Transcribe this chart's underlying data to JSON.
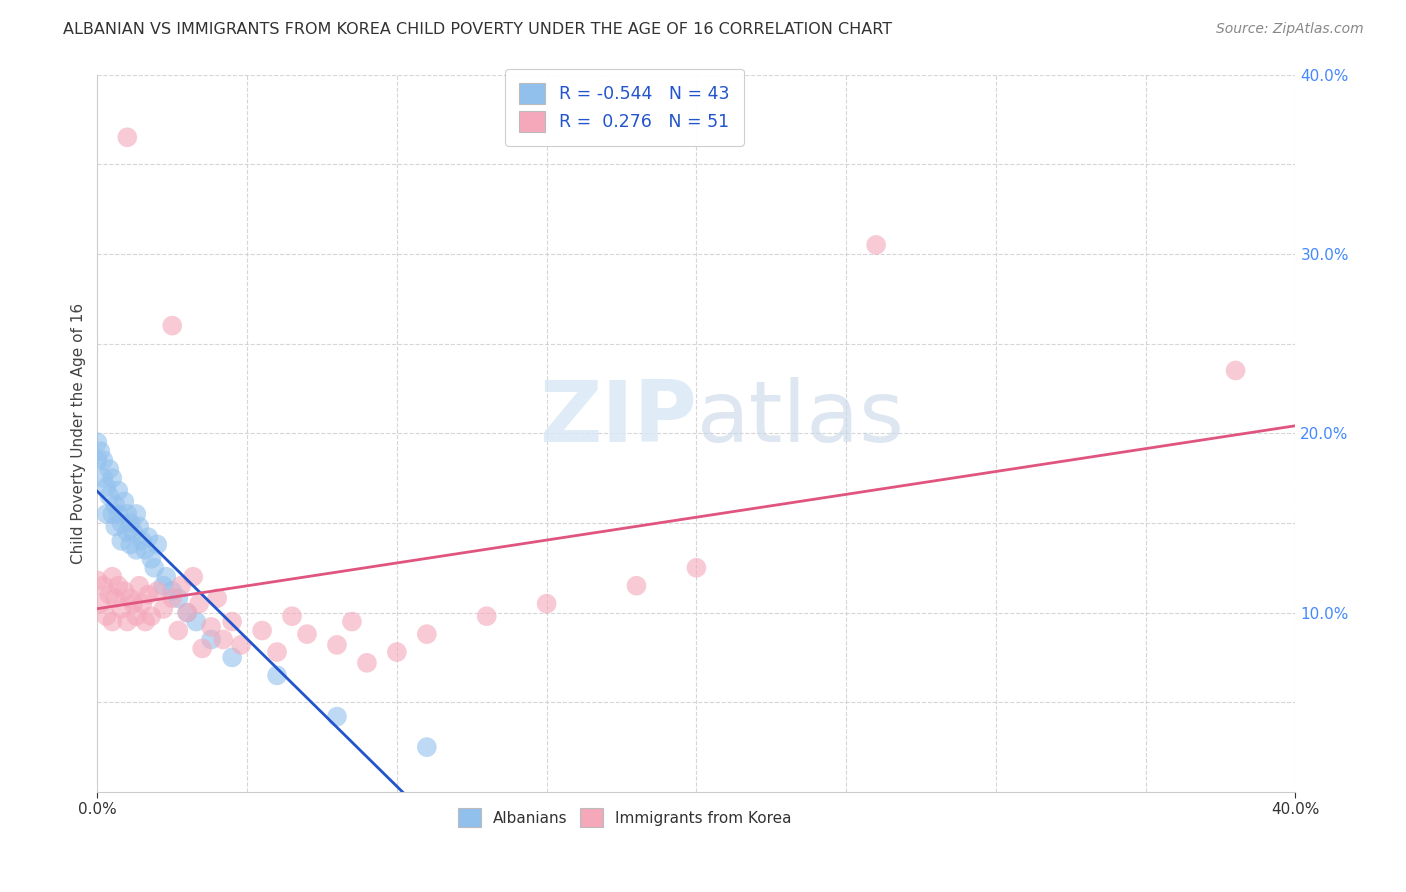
{
  "title": "ALBANIAN VS IMMIGRANTS FROM KOREA CHILD POVERTY UNDER THE AGE OF 16 CORRELATION CHART",
  "source": "Source: ZipAtlas.com",
  "ylabel": "Child Poverty Under the Age of 16",
  "r_albanian": -0.544,
  "n_albanian": 43,
  "r_korean": 0.276,
  "n_korean": 51,
  "xmin": 0.0,
  "xmax": 0.4,
  "ymin": 0.0,
  "ymax": 0.4,
  "albanian_color": "#92C0ED",
  "korean_color": "#F4A8BA",
  "trend_albanian_color": "#2255CC",
  "trend_korean_color": "#E05580",
  "background": "#FFFFFF",
  "grid_color": "#CCCCCC",
  "albanian_points": [
    [
      0.0,
      0.195
    ],
    [
      0.0,
      0.185
    ],
    [
      0.001,
      0.19
    ],
    [
      0.002,
      0.175
    ],
    [
      0.002,
      0.185
    ],
    [
      0.003,
      0.17
    ],
    [
      0.003,
      0.155
    ],
    [
      0.004,
      0.165
    ],
    [
      0.004,
      0.18
    ],
    [
      0.005,
      0.155
    ],
    [
      0.005,
      0.175
    ],
    [
      0.006,
      0.16
    ],
    [
      0.006,
      0.148
    ],
    [
      0.007,
      0.168
    ],
    [
      0.007,
      0.155
    ],
    [
      0.008,
      0.15
    ],
    [
      0.008,
      0.14
    ],
    [
      0.009,
      0.162
    ],
    [
      0.01,
      0.155
    ],
    [
      0.01,
      0.145
    ],
    [
      0.011,
      0.15
    ],
    [
      0.011,
      0.138
    ],
    [
      0.012,
      0.145
    ],
    [
      0.013,
      0.135
    ],
    [
      0.013,
      0.155
    ],
    [
      0.014,
      0.148
    ],
    [
      0.015,
      0.14
    ],
    [
      0.016,
      0.135
    ],
    [
      0.017,
      0.142
    ],
    [
      0.018,
      0.13
    ],
    [
      0.019,
      0.125
    ],
    [
      0.02,
      0.138
    ],
    [
      0.022,
      0.115
    ],
    [
      0.023,
      0.12
    ],
    [
      0.025,
      0.112
    ],
    [
      0.027,
      0.108
    ],
    [
      0.03,
      0.1
    ],
    [
      0.033,
      0.095
    ],
    [
      0.038,
      0.085
    ],
    [
      0.045,
      0.075
    ],
    [
      0.06,
      0.065
    ],
    [
      0.08,
      0.042
    ],
    [
      0.11,
      0.025
    ]
  ],
  "korean_points": [
    [
      0.0,
      0.118
    ],
    [
      0.001,
      0.105
    ],
    [
      0.002,
      0.115
    ],
    [
      0.003,
      0.098
    ],
    [
      0.004,
      0.11
    ],
    [
      0.005,
      0.12
    ],
    [
      0.005,
      0.095
    ],
    [
      0.006,
      0.108
    ],
    [
      0.007,
      0.115
    ],
    [
      0.008,
      0.102
    ],
    [
      0.009,
      0.112
    ],
    [
      0.01,
      0.095
    ],
    [
      0.011,
      0.108
    ],
    [
      0.012,
      0.105
    ],
    [
      0.013,
      0.098
    ],
    [
      0.014,
      0.115
    ],
    [
      0.015,
      0.105
    ],
    [
      0.016,
      0.095
    ],
    [
      0.017,
      0.11
    ],
    [
      0.018,
      0.098
    ],
    [
      0.02,
      0.112
    ],
    [
      0.022,
      0.102
    ],
    [
      0.025,
      0.108
    ],
    [
      0.025,
      0.26
    ],
    [
      0.027,
      0.09
    ],
    [
      0.028,
      0.115
    ],
    [
      0.03,
      0.1
    ],
    [
      0.032,
      0.12
    ],
    [
      0.034,
      0.105
    ],
    [
      0.035,
      0.08
    ],
    [
      0.038,
      0.092
    ],
    [
      0.04,
      0.108
    ],
    [
      0.042,
      0.085
    ],
    [
      0.045,
      0.095
    ],
    [
      0.048,
      0.082
    ],
    [
      0.01,
      0.365
    ],
    [
      0.055,
      0.09
    ],
    [
      0.06,
      0.078
    ],
    [
      0.065,
      0.098
    ],
    [
      0.07,
      0.088
    ],
    [
      0.08,
      0.082
    ],
    [
      0.085,
      0.095
    ],
    [
      0.09,
      0.072
    ],
    [
      0.1,
      0.078
    ],
    [
      0.11,
      0.088
    ],
    [
      0.13,
      0.098
    ],
    [
      0.15,
      0.105
    ],
    [
      0.18,
      0.115
    ],
    [
      0.2,
      0.125
    ],
    [
      0.26,
      0.305
    ],
    [
      0.38,
      0.235
    ]
  ]
}
